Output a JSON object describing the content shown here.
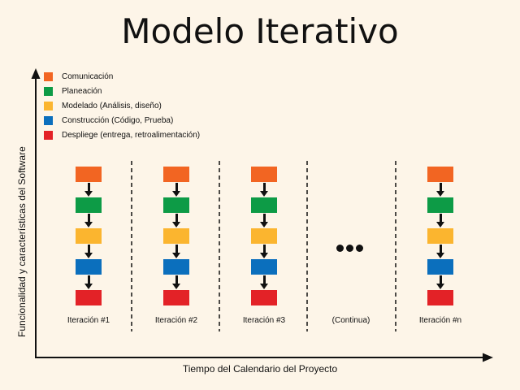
{
  "title": "Modelo Iterativo",
  "legend": [
    {
      "label": "Comunicación",
      "color": "#f26522"
    },
    {
      "label": "Planeación",
      "color": "#0d9b46"
    },
    {
      "label": "Modelado (Análisis, diseño)",
      "color": "#fbb52f"
    },
    {
      "label": "Construcción (Código, Prueba)",
      "color": "#0b6fbd"
    },
    {
      "label": "Despliege (entrega, retroalimentación)",
      "color": "#e32227"
    }
  ],
  "y_axis_label": "Funcionalidad y características del Software",
  "x_axis_label": "Tiempo del Calendario del Proyecto",
  "iterations": [
    {
      "label": "Iteración #1",
      "has_stack": true
    },
    {
      "label": "Iteración #2",
      "has_stack": true
    },
    {
      "label": "Iteración #3",
      "has_stack": true
    },
    {
      "label": "(Continua)",
      "has_stack": false
    },
    {
      "label": "Iteración #n",
      "has_stack": true
    }
  ]
}
